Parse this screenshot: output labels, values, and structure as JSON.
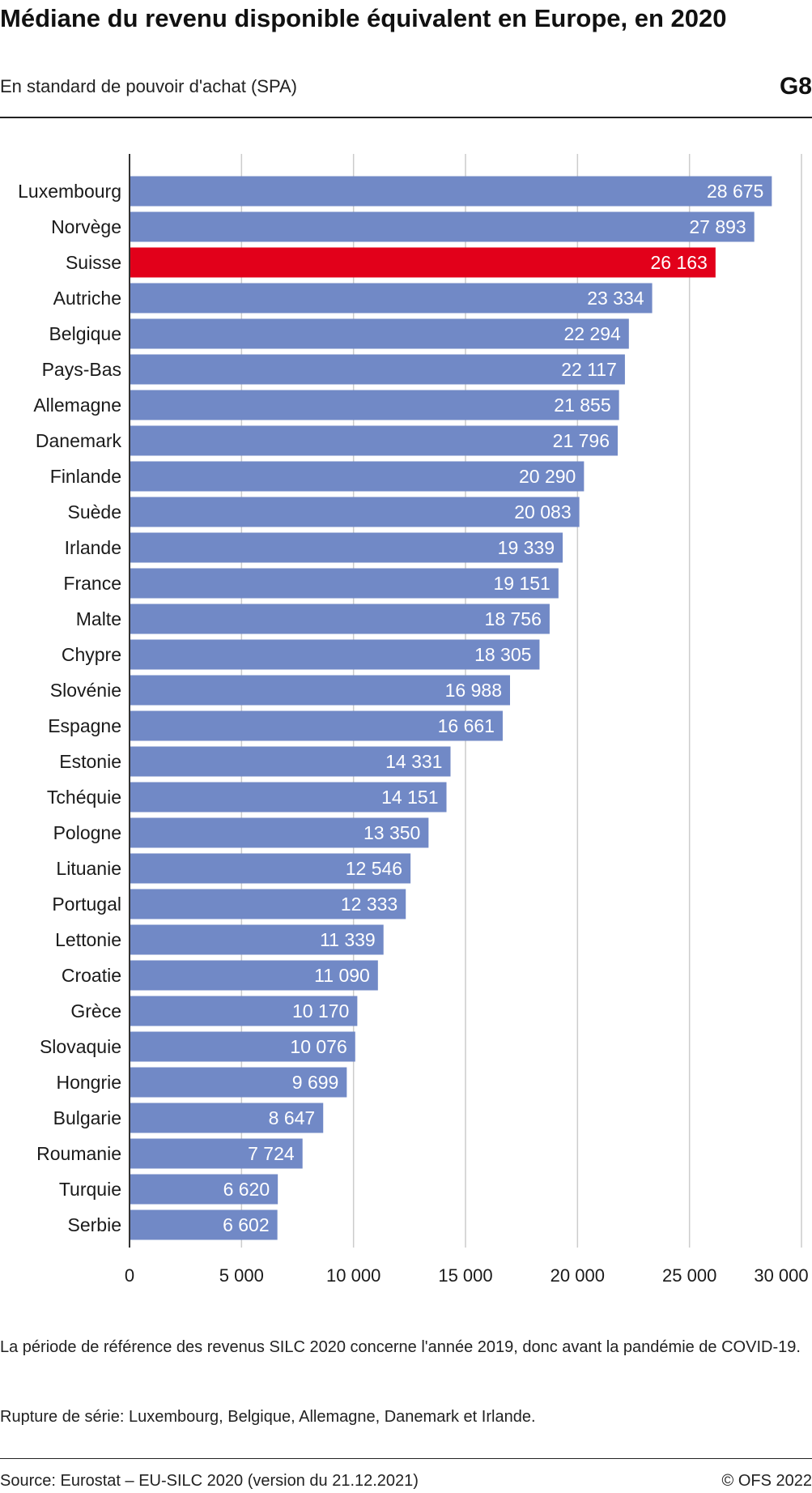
{
  "header": {
    "title": "Médiane du revenu disponible équivalent en Europe, en 2020",
    "subtitle": "En standard de pouvoir d'achat (SPA)",
    "badge": "G8"
  },
  "notes": {
    "note1": "La période de référence des revenus SILC 2020 concerne l'année 2019, donc avant la pandémie de COVID-19.",
    "note2": "Rupture de série: Luxembourg, Belgique, Allemagne, Danemark et Irlande."
  },
  "footer": {
    "source": "Source: Eurostat – EU-SILC 2020 (version du 21.12.2021)",
    "copyright": "© OFS 2022"
  },
  "colors": {
    "bar": "#7189c6",
    "highlight": "#e2001a",
    "grid": "#cccccc",
    "axis": "#333333"
  },
  "chart_data": {
    "type": "bar",
    "orientation": "horizontal",
    "categories": [
      "Luxembourg",
      "Norvège",
      "Suisse",
      "Autriche",
      "Belgique",
      "Pays-Bas",
      "Allemagne",
      "Danemark",
      "Finlande",
      "Suède",
      "Irlande",
      "France",
      "Malte",
      "Chypre",
      "Slovénie",
      "Espagne",
      "Estonie",
      "Tchéquie",
      "Pologne",
      "Lituanie",
      "Portugal",
      "Lettonie",
      "Croatie",
      "Grèce",
      "Slovaquie",
      "Hongrie",
      "Bulgarie",
      "Roumanie",
      "Turquie",
      "Serbie"
    ],
    "values": [
      28675,
      27893,
      26163,
      23334,
      22294,
      22117,
      21855,
      21796,
      20290,
      20083,
      19339,
      19151,
      18756,
      18305,
      16988,
      16661,
      14331,
      14151,
      13350,
      12546,
      12333,
      11339,
      11090,
      10170,
      10076,
      9699,
      8647,
      7724,
      6620,
      6602
    ],
    "value_labels": [
      "28 675",
      "27 893",
      "26 163",
      "23 334",
      "22 294",
      "22 117",
      "21 855",
      "21 796",
      "20 290",
      "20 083",
      "19 339",
      "19 151",
      "18 756",
      "18 305",
      "16 988",
      "16 661",
      "14 331",
      "14 151",
      "13 350",
      "12 546",
      "12 333",
      "11 339",
      "11 090",
      "10 170",
      "10 076",
      "9 699",
      "8 647",
      "7 724",
      "6 620",
      "6 602"
    ],
    "highlight": "Suisse",
    "xlim": [
      0,
      30000
    ],
    "xticks": [
      0,
      5000,
      10000,
      15000,
      20000,
      25000,
      30000
    ],
    "xtick_labels": [
      "0",
      "5 000",
      "10 000",
      "15 000",
      "20 000",
      "25 000",
      "30 000"
    ],
    "grid": true,
    "legend": false
  }
}
